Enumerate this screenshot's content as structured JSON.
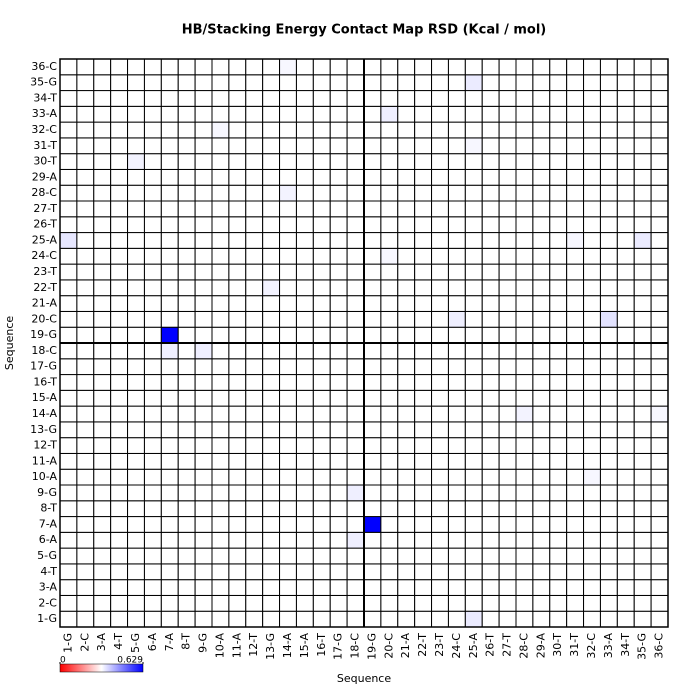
{
  "chart_data": {
    "type": "heatmap",
    "title": "HB/Stacking Energy Contact Map RSD (Kcal / mol)",
    "x_label": "Sequence",
    "y_label": "Sequence",
    "categories": [
      "1-G",
      "2-C",
      "3-A",
      "4-T",
      "5-G",
      "6-A",
      "7-A",
      "8-T",
      "9-G",
      "10-A",
      "11-A",
      "12-T",
      "13-G",
      "14-A",
      "15-A",
      "16-T",
      "17-G",
      "18-C",
      "19-G",
      "20-C",
      "21-A",
      "22-T",
      "23-T",
      "24-C",
      "25-A",
      "26-T",
      "27-T",
      "28-C",
      "29-A",
      "30-T",
      "31-T",
      "32-C",
      "33-A",
      "34-T",
      "35-G",
      "36-C"
    ],
    "zlim": [
      0,
      0.629
    ],
    "zticks": [
      0,
      0.629
    ],
    "low_color": "#ffffff",
    "high_color": "#0000ff",
    "values": [
      [
        0,
        0,
        0,
        0,
        0,
        0,
        0,
        0,
        0,
        0,
        0,
        0,
        0,
        0,
        0,
        0,
        0,
        0,
        0,
        0,
        0,
        0,
        0,
        0,
        0.05,
        0,
        0,
        0,
        0,
        0,
        0,
        0,
        0,
        0,
        0,
        0
      ],
      [
        0,
        0,
        0,
        0,
        0,
        0,
        0,
        0,
        0,
        0,
        0,
        0,
        0,
        0,
        0,
        0,
        0,
        0,
        0,
        0,
        0,
        0,
        0,
        0,
        0,
        0,
        0,
        0,
        0,
        0,
        0,
        0,
        0,
        0,
        0,
        0
      ],
      [
        0,
        0,
        0,
        0,
        0,
        0,
        0,
        0,
        0,
        0,
        0,
        0,
        0,
        0,
        0,
        0,
        0,
        0,
        0,
        0,
        0,
        0,
        0,
        0,
        0,
        0,
        0,
        0,
        0,
        0,
        0,
        0,
        0,
        0,
        0,
        0
      ],
      [
        0,
        0,
        0,
        0,
        0,
        0,
        0,
        0,
        0,
        0,
        0,
        0,
        0,
        0,
        0,
        0,
        0,
        0,
        0,
        0,
        0,
        0,
        0,
        0,
        0,
        0,
        0,
        0,
        0,
        0,
        0,
        0,
        0,
        0,
        0,
        0
      ],
      [
        0,
        0,
        0,
        0,
        0,
        0,
        0,
        0,
        0,
        0,
        0,
        0,
        0,
        0,
        0,
        0,
        0,
        0,
        0,
        0,
        0,
        0,
        0,
        0,
        0,
        0,
        0,
        0,
        0,
        0,
        0,
        0,
        0,
        0,
        0,
        0
      ],
      [
        0,
        0,
        0,
        0,
        0,
        0,
        0,
        0,
        0,
        0,
        0,
        0,
        0,
        0,
        0,
        0,
        0,
        0.04,
        0,
        0,
        0,
        0,
        0,
        0,
        0,
        0,
        0,
        0,
        0,
        0,
        0,
        0,
        0,
        0,
        0,
        0
      ],
      [
        0,
        0,
        0,
        0,
        0,
        0,
        0,
        0,
        0,
        0,
        0,
        0,
        0,
        0,
        0,
        0,
        0,
        0,
        0.629,
        0,
        0,
        0,
        0,
        0,
        0,
        0,
        0,
        0,
        0,
        0,
        0,
        0,
        0,
        0,
        0,
        0
      ],
      [
        0,
        0,
        0,
        0,
        0,
        0,
        0,
        0,
        0,
        0,
        0,
        0,
        0,
        0,
        0,
        0,
        0,
        0,
        0,
        0,
        0,
        0,
        0,
        0,
        0,
        0,
        0,
        0,
        0,
        0,
        0,
        0,
        0,
        0,
        0,
        0
      ],
      [
        0,
        0,
        0,
        0,
        0,
        0,
        0,
        0,
        0,
        0,
        0,
        0,
        0,
        0,
        0,
        0,
        0,
        0.04,
        0,
        0,
        0,
        0,
        0,
        0,
        0,
        0,
        0,
        0,
        0,
        0,
        0,
        0,
        0,
        0,
        0,
        0
      ],
      [
        0,
        0,
        0,
        0,
        0,
        0,
        0,
        0,
        0,
        0,
        0,
        0,
        0,
        0,
        0,
        0,
        0,
        0,
        0,
        0,
        0,
        0,
        0,
        0,
        0,
        0,
        0,
        0,
        0,
        0,
        0,
        0.02,
        0,
        0,
        0,
        0
      ],
      [
        0,
        0,
        0,
        0,
        0,
        0,
        0,
        0,
        0,
        0,
        0,
        0,
        0,
        0,
        0,
        0,
        0,
        0,
        0,
        0,
        0,
        0,
        0,
        0,
        0,
        0,
        0,
        0,
        0,
        0,
        0,
        0,
        0,
        0,
        0,
        0
      ],
      [
        0,
        0,
        0,
        0,
        0,
        0,
        0,
        0,
        0,
        0,
        0,
        0,
        0,
        0,
        0,
        0,
        0,
        0,
        0,
        0,
        0,
        0,
        0,
        0,
        0,
        0,
        0,
        0,
        0,
        0,
        0,
        0,
        0,
        0,
        0,
        0
      ],
      [
        0,
        0,
        0,
        0,
        0,
        0,
        0,
        0,
        0,
        0,
        0,
        0,
        0,
        0,
        0,
        0,
        0,
        0,
        0,
        0,
        0,
        0,
        0,
        0,
        0,
        0,
        0,
        0,
        0,
        0,
        0,
        0,
        0,
        0,
        0,
        0
      ],
      [
        0,
        0,
        0,
        0,
        0,
        0,
        0,
        0,
        0,
        0,
        0,
        0,
        0,
        0,
        0,
        0,
        0,
        0,
        0,
        0,
        0,
        0,
        0,
        0,
        0,
        0,
        0,
        0.03,
        0,
        0,
        0,
        0,
        0,
        0,
        0,
        0.02
      ],
      [
        0,
        0,
        0,
        0,
        0,
        0,
        0,
        0,
        0,
        0,
        0,
        0,
        0,
        0,
        0,
        0,
        0,
        0,
        0,
        0,
        0,
        0,
        0,
        0,
        0,
        0,
        0,
        0,
        0,
        0,
        0,
        0,
        0,
        0,
        0,
        0
      ],
      [
        0,
        0,
        0,
        0,
        0,
        0,
        0,
        0,
        0,
        0,
        0,
        0,
        0,
        0,
        0,
        0,
        0,
        0,
        0,
        0,
        0,
        0,
        0,
        0,
        0,
        0,
        0,
        0,
        0,
        0,
        0,
        0,
        0,
        0,
        0,
        0
      ],
      [
        0,
        0,
        0,
        0,
        0,
        0,
        0,
        0,
        0,
        0,
        0,
        0,
        0,
        0,
        0,
        0,
        0,
        0,
        0,
        0,
        0,
        0,
        0,
        0,
        0,
        0,
        0,
        0,
        0,
        0,
        0,
        0,
        0,
        0,
        0,
        0
      ],
      [
        0,
        0,
        0,
        0,
        0,
        0,
        0.04,
        0,
        0.04,
        0,
        0,
        0,
        0,
        0,
        0,
        0,
        0,
        0,
        0,
        0,
        0,
        0,
        0,
        0,
        0,
        0,
        0,
        0,
        0,
        0,
        0,
        0,
        0,
        0,
        0,
        0
      ],
      [
        0,
        0,
        0,
        0,
        0,
        0,
        0.629,
        0,
        0,
        0,
        0,
        0,
        0,
        0,
        0,
        0,
        0,
        0,
        0,
        0,
        0,
        0,
        0,
        0,
        0,
        0,
        0,
        0,
        0,
        0,
        0,
        0,
        0,
        0,
        0,
        0
      ],
      [
        0,
        0,
        0,
        0,
        0,
        0,
        0,
        0,
        0,
        0,
        0,
        0,
        0,
        0,
        0,
        0,
        0,
        0,
        0,
        0,
        0,
        0,
        0,
        0.04,
        0,
        0,
        0,
        0,
        0,
        0,
        0,
        0,
        0.07,
        0,
        0,
        0
      ],
      [
        0,
        0,
        0,
        0,
        0,
        0,
        0,
        0,
        0,
        0,
        0,
        0,
        0,
        0,
        0,
        0,
        0,
        0,
        0,
        0,
        0,
        0,
        0,
        0,
        0,
        0,
        0,
        0,
        0,
        0,
        0,
        0,
        0,
        0,
        0,
        0
      ],
      [
        0,
        0,
        0,
        0,
        0,
        0,
        0,
        0,
        0,
        0,
        0,
        0,
        0.03,
        0,
        0,
        0,
        0,
        0,
        0,
        0,
        0,
        0,
        0,
        0,
        0,
        0,
        0,
        0,
        0,
        0,
        0,
        0,
        0,
        0,
        0,
        0
      ],
      [
        0,
        0,
        0,
        0,
        0,
        0,
        0,
        0,
        0,
        0,
        0,
        0,
        0,
        0,
        0,
        0,
        0,
        0,
        0,
        0,
        0,
        0,
        0,
        0,
        0,
        0,
        0,
        0,
        0,
        0,
        0,
        0,
        0,
        0,
        0,
        0
      ],
      [
        0,
        0,
        0,
        0,
        0,
        0,
        0,
        0,
        0,
        0,
        0,
        0,
        0,
        0,
        0,
        0,
        0,
        0,
        0,
        0.02,
        0,
        0,
        0,
        0,
        0,
        0,
        0,
        0,
        0,
        0,
        0,
        0,
        0,
        0,
        0,
        0
      ],
      [
        0.06,
        0,
        0,
        0,
        0,
        0,
        0,
        0,
        0,
        0,
        0,
        0,
        0,
        0,
        0,
        0,
        0,
        0,
        0,
        0,
        0,
        0,
        0,
        0,
        0,
        0,
        0,
        0,
        0,
        0,
        0.02,
        0,
        0,
        0,
        0.05,
        0
      ],
      [
        0,
        0,
        0,
        0,
        0,
        0,
        0,
        0,
        0,
        0,
        0,
        0,
        0,
        0,
        0,
        0,
        0,
        0,
        0,
        0,
        0,
        0,
        0,
        0,
        0,
        0,
        0,
        0,
        0,
        0,
        0,
        0,
        0,
        0,
        0,
        0
      ],
      [
        0,
        0,
        0,
        0,
        0,
        0,
        0,
        0,
        0,
        0,
        0,
        0,
        0,
        0,
        0,
        0,
        0,
        0,
        0,
        0,
        0,
        0,
        0,
        0,
        0,
        0,
        0,
        0,
        0,
        0,
        0,
        0,
        0,
        0,
        0,
        0
      ],
      [
        0,
        0,
        0,
        0,
        0,
        0,
        0,
        0,
        0,
        0,
        0,
        0,
        0,
        0.03,
        0,
        0,
        0,
        0,
        0,
        0,
        0,
        0,
        0,
        0,
        0,
        0,
        0,
        0,
        0,
        0,
        0,
        0,
        0,
        0,
        0,
        0
      ],
      [
        0,
        0,
        0,
        0,
        0,
        0,
        0,
        0,
        0,
        0,
        0,
        0,
        0,
        0,
        0,
        0,
        0,
        0,
        0,
        0,
        0,
        0,
        0,
        0,
        0,
        0,
        0,
        0,
        0,
        0,
        0,
        0,
        0,
        0,
        0,
        0
      ],
      [
        0,
        0,
        0,
        0,
        0.03,
        0,
        0,
        0,
        0,
        0,
        0,
        0,
        0,
        0,
        0,
        0,
        0,
        0,
        0,
        0,
        0,
        0,
        0,
        0,
        0,
        0,
        0,
        0,
        0,
        0,
        0,
        0,
        0,
        0,
        0,
        0
      ],
      [
        0,
        0,
        0,
        0,
        0,
        0,
        0,
        0,
        0,
        0,
        0,
        0,
        0,
        0,
        0,
        0,
        0,
        0,
        0,
        0,
        0,
        0,
        0,
        0,
        0.02,
        0,
        0,
        0,
        0,
        0,
        0,
        0,
        0,
        0,
        0,
        0
      ],
      [
        0,
        0,
        0,
        0,
        0,
        0,
        0,
        0,
        0,
        0.02,
        0,
        0,
        0,
        0,
        0,
        0,
        0,
        0,
        0,
        0,
        0,
        0,
        0,
        0,
        0,
        0,
        0,
        0,
        0,
        0,
        0,
        0,
        0,
        0,
        0,
        0
      ],
      [
        0,
        0,
        0,
        0,
        0,
        0,
        0,
        0,
        0,
        0,
        0,
        0,
        0,
        0,
        0,
        0,
        0,
        0,
        0,
        0.04,
        0,
        0,
        0,
        0,
        0,
        0,
        0,
        0,
        0,
        0,
        0,
        0,
        0,
        0,
        0,
        0
      ],
      [
        0,
        0,
        0,
        0,
        0,
        0,
        0,
        0,
        0,
        0,
        0,
        0,
        0,
        0,
        0,
        0,
        0,
        0,
        0,
        0,
        0,
        0,
        0,
        0,
        0,
        0,
        0,
        0,
        0,
        0,
        0,
        0,
        0,
        0,
        0,
        0
      ],
      [
        0,
        0,
        0,
        0,
        0,
        0,
        0,
        0,
        0,
        0,
        0,
        0,
        0,
        0,
        0,
        0,
        0,
        0,
        0,
        0,
        0,
        0,
        0,
        0,
        0.05,
        0,
        0,
        0,
        0,
        0,
        0,
        0,
        0,
        0,
        0,
        0
      ],
      [
        0,
        0,
        0,
        0,
        0,
        0,
        0,
        0,
        0,
        0,
        0,
        0,
        0,
        0.02,
        0,
        0,
        0,
        0,
        0,
        0,
        0,
        0,
        0,
        0,
        0,
        0,
        0,
        0,
        0,
        0,
        0,
        0,
        0,
        0,
        0,
        0
      ]
    ]
  }
}
